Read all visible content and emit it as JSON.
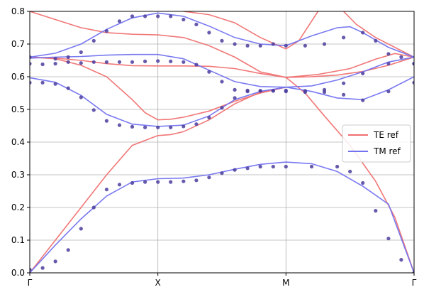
{
  "chart_data": {
    "type": "line",
    "title": "",
    "xlabel": "",
    "ylabel": "",
    "ylim": [
      0,
      0.8
    ],
    "xlim": [
      0,
      3
    ],
    "grid": true,
    "legend_position": "right",
    "x_ticks": [
      {
        "value": 0,
        "label": "Γ"
      },
      {
        "value": 1,
        "label": "X"
      },
      {
        "value": 2,
        "label": "M"
      },
      {
        "value": 3,
        "label": "Γ"
      }
    ],
    "y_ticks": [
      0.0,
      0.1,
      0.2,
      0.3,
      0.4,
      0.5,
      0.6,
      0.7,
      0.8
    ],
    "y_tick_labels": [
      "0.0",
      "0.1",
      "0.2",
      "0.3",
      "0.4",
      "0.5",
      "0.6",
      "0.7",
      "0.8"
    ],
    "series": [
      {
        "name": "TE ref",
        "color": "#f07070",
        "bands": [
          [
            [
              0,
              0
            ],
            [
              0.2,
              0.1
            ],
            [
              0.4,
              0.2
            ],
            [
              0.6,
              0.3
            ],
            [
              0.8,
              0.39
            ],
            [
              1,
              0.42
            ],
            [
              1.1,
              0.423
            ],
            [
              1.2,
              0.432
            ],
            [
              1.4,
              0.468
            ],
            [
              1.6,
              0.517
            ],
            [
              1.8,
              0.553
            ],
            [
              2,
              0.568
            ]
          ],
          [
            [
              0,
              0.66
            ],
            [
              0.2,
              0.655
            ],
            [
              0.4,
              0.635
            ],
            [
              0.6,
              0.6
            ],
            [
              0.8,
              0.53
            ],
            [
              0.9,
              0.49
            ],
            [
              1,
              0.468
            ],
            [
              1.1,
              0.47
            ],
            [
              1.2,
              0.476
            ],
            [
              1.4,
              0.495
            ],
            [
              1.6,
              0.525
            ],
            [
              1.8,
              0.55
            ],
            [
              2,
              0.568
            ]
          ],
          [
            [
              0,
              0.66
            ],
            [
              0.2,
              0.657
            ],
            [
              0.4,
              0.65
            ],
            [
              0.6,
              0.64
            ],
            [
              0.8,
              0.634
            ],
            [
              1,
              0.633
            ],
            [
              1.2,
              0.633
            ],
            [
              1.4,
              0.632
            ],
            [
              1.6,
              0.625
            ],
            [
              1.8,
              0.61
            ],
            [
              2,
              0.598
            ]
          ],
          [
            [
              0,
              0.8
            ],
            [
              0.2,
              0.775
            ],
            [
              0.4,
              0.75
            ],
            [
              0.6,
              0.735
            ],
            [
              0.8,
              0.73
            ],
            [
              1,
              0.728
            ],
            [
              1.2,
              0.72
            ],
            [
              1.4,
              0.695
            ],
            [
              1.6,
              0.66
            ],
            [
              1.8,
              0.615
            ],
            [
              2,
              0.598
            ]
          ],
          [
            [
              1.2,
              0.8
            ],
            [
              1.4,
              0.79
            ],
            [
              1.6,
              0.765
            ],
            [
              1.8,
              0.72
            ],
            [
              2,
              0.685
            ],
            [
              2.1,
              0.71
            ],
            [
              2.25,
              0.8
            ]
          ],
          [
            [
              2,
              0.598
            ],
            [
              2.15,
              0.55
            ],
            [
              2.3,
              0.48
            ],
            [
              2.5,
              0.39
            ],
            [
              2.7,
              0.28
            ],
            [
              2.85,
              0.17
            ],
            [
              3,
              0
            ]
          ],
          [
            [
              2,
              0.598
            ],
            [
              2.2,
              0.6
            ],
            [
              2.4,
              0.605
            ],
            [
              2.6,
              0.616
            ],
            [
              2.8,
              0.635
            ],
            [
              3,
              0.66
            ]
          ],
          [
            [
              2,
              0.598
            ],
            [
              2.25,
              0.607
            ],
            [
              2.5,
              0.625
            ],
            [
              2.7,
              0.654
            ],
            [
              2.85,
              0.671
            ],
            [
              3,
              0.66
            ]
          ],
          [
            [
              2.45,
              0.8
            ],
            [
              2.55,
              0.76
            ],
            [
              2.7,
              0.72
            ],
            [
              2.85,
              0.69
            ],
            [
              3,
              0.66
            ]
          ]
        ]
      },
      {
        "name": "TM ref",
        "color": "#7272f0",
        "bands": [
          [
            [
              0,
              0
            ],
            [
              0.2,
              0.085
            ],
            [
              0.4,
              0.165
            ],
            [
              0.6,
              0.235
            ],
            [
              0.8,
              0.278
            ],
            [
              1,
              0.288
            ],
            [
              1.2,
              0.29
            ],
            [
              1.4,
              0.3
            ],
            [
              1.6,
              0.317
            ],
            [
              1.8,
              0.332
            ],
            [
              2,
              0.339
            ],
            [
              2.2,
              0.334
            ],
            [
              2.4,
              0.31
            ],
            [
              2.6,
              0.265
            ],
            [
              2.8,
              0.21
            ],
            [
              3,
              0
            ]
          ],
          [
            [
              0,
              0.597
            ],
            [
              0.2,
              0.583
            ],
            [
              0.4,
              0.543
            ],
            [
              0.6,
              0.485
            ],
            [
              0.8,
              0.455
            ],
            [
              1,
              0.448
            ],
            [
              1.2,
              0.452
            ],
            [
              1.4,
              0.48
            ],
            [
              1.6,
              0.53
            ],
            [
              1.8,
              0.555
            ],
            [
              2,
              0.568
            ],
            [
              2.2,
              0.555
            ],
            [
              2.4,
              0.535
            ],
            [
              2.6,
              0.53
            ],
            [
              2.8,
              0.56
            ],
            [
              3,
              0.6
            ]
          ],
          [
            [
              0,
              0.657
            ],
            [
              0.2,
              0.66
            ],
            [
              0.4,
              0.662
            ],
            [
              0.6,
              0.666
            ],
            [
              0.8,
              0.668
            ],
            [
              1,
              0.668
            ],
            [
              1.2,
              0.655
            ],
            [
              1.4,
              0.62
            ],
            [
              1.6,
              0.585
            ],
            [
              1.8,
              0.57
            ],
            [
              2,
              0.568
            ],
            [
              2.2,
              0.572
            ],
            [
              2.4,
              0.59
            ],
            [
              2.6,
              0.615
            ],
            [
              2.8,
              0.645
            ],
            [
              3,
              0.66
            ]
          ],
          [
            [
              0,
              0.66
            ],
            [
              0.2,
              0.672
            ],
            [
              0.4,
              0.7
            ],
            [
              0.6,
              0.745
            ],
            [
              0.8,
              0.78
            ],
            [
              1,
              0.795
            ],
            [
              1.2,
              0.785
            ],
            [
              1.4,
              0.755
            ],
            [
              1.6,
              0.72
            ],
            [
              1.8,
              0.7
            ],
            [
              2,
              0.695
            ],
            [
              2.2,
              0.725
            ],
            [
              2.4,
              0.75
            ],
            [
              2.5,
              0.753
            ],
            [
              2.6,
              0.735
            ],
            [
              2.8,
              0.69
            ],
            [
              3,
              0.66
            ]
          ]
        ]
      },
      {
        "name": "",
        "color": "#4b3d9e",
        "points": [
          [
            0,
            0.01
          ],
          [
            0.1,
            0.015
          ],
          [
            0.2,
            0.035
          ],
          [
            0.3,
            0.07
          ],
          [
            0.4,
            0.135
          ],
          [
            0.5,
            0.2
          ],
          [
            0.6,
            0.255
          ],
          [
            0.7,
            0.27
          ],
          [
            0.8,
            0.275
          ],
          [
            0.9,
            0.278
          ],
          [
            1,
            0.278
          ],
          [
            1.1,
            0.278
          ],
          [
            1.2,
            0.28
          ],
          [
            1.3,
            0.283
          ],
          [
            1.4,
            0.292
          ],
          [
            1.5,
            0.305
          ],
          [
            1.6,
            0.315
          ],
          [
            1.7,
            0.32
          ],
          [
            1.8,
            0.325
          ],
          [
            1.9,
            0.325
          ],
          [
            2,
            0.325
          ],
          [
            2.2,
            0.325
          ],
          [
            2.4,
            0.325
          ],
          [
            2.5,
            0.31
          ],
          [
            2.6,
            0.275
          ],
          [
            2.7,
            0.19
          ],
          [
            2.8,
            0.105
          ],
          [
            2.9,
            0.04
          ],
          [
            3,
            0
          ],
          [
            0,
            0.582
          ],
          [
            0.1,
            0.582
          ],
          [
            0.2,
            0.578
          ],
          [
            0.3,
            0.565
          ],
          [
            0.4,
            0.537
          ],
          [
            0.5,
            0.498
          ],
          [
            0.6,
            0.465
          ],
          [
            0.7,
            0.452
          ],
          [
            0.8,
            0.447
          ],
          [
            0.9,
            0.445
          ],
          [
            1,
            0.445
          ],
          [
            1.1,
            0.445
          ],
          [
            1.2,
            0.448
          ],
          [
            1.3,
            0.455
          ],
          [
            1.4,
            0.475
          ],
          [
            1.5,
            0.505
          ],
          [
            1.6,
            0.535
          ],
          [
            1.7,
            0.555
          ],
          [
            1.8,
            0.557
          ],
          [
            1.9,
            0.557
          ],
          [
            2,
            0.558
          ],
          [
            2.15,
            0.557
          ],
          [
            2.3,
            0.553
          ],
          [
            2.45,
            0.545
          ],
          [
            2.6,
            0.528
          ],
          [
            2.8,
            0.555
          ],
          [
            3,
            0.582
          ],
          [
            0,
            0.64
          ],
          [
            0.1,
            0.638
          ],
          [
            0.2,
            0.64
          ],
          [
            0.3,
            0.645
          ],
          [
            0.4,
            0.642
          ],
          [
            0.5,
            0.645
          ],
          [
            0.6,
            0.645
          ],
          [
            0.7,
            0.645
          ],
          [
            0.8,
            0.645
          ],
          [
            0.9,
            0.647
          ],
          [
            1,
            0.648
          ],
          [
            1.1,
            0.647
          ],
          [
            1.2,
            0.645
          ],
          [
            1.3,
            0.637
          ],
          [
            1.4,
            0.615
          ],
          [
            1.5,
            0.585
          ],
          [
            1.6,
            0.56
          ],
          [
            1.7,
            0.558
          ],
          [
            1.8,
            0.557
          ],
          [
            1.9,
            0.557
          ],
          [
            2,
            0.555
          ],
          [
            2.15,
            0.553
          ],
          [
            2.3,
            0.56
          ],
          [
            2.45,
            0.58
          ],
          [
            2.6,
            0.61
          ],
          [
            2.8,
            0.64
          ],
          [
            3,
            0.64
          ],
          [
            0,
            0.66
          ],
          [
            0.2,
            0.655
          ],
          [
            0.3,
            0.66
          ],
          [
            0.4,
            0.675
          ],
          [
            0.5,
            0.71
          ],
          [
            0.6,
            0.74
          ],
          [
            0.7,
            0.77
          ],
          [
            0.8,
            0.785
          ],
          [
            0.9,
            0.785
          ],
          [
            1,
            0.785
          ],
          [
            1.1,
            0.785
          ],
          [
            1.2,
            0.775
          ],
          [
            1.3,
            0.76
          ],
          [
            1.4,
            0.735
          ],
          [
            1.5,
            0.71
          ],
          [
            1.6,
            0.7
          ],
          [
            1.7,
            0.695
          ],
          [
            1.8,
            0.695
          ],
          [
            1.9,
            0.7
          ],
          [
            2,
            0.695
          ],
          [
            2.15,
            0.695
          ],
          [
            2.3,
            0.7
          ],
          [
            2.45,
            0.72
          ],
          [
            2.6,
            0.735
          ],
          [
            2.7,
            0.71
          ],
          [
            2.8,
            0.67
          ],
          [
            2.9,
            0.66
          ],
          [
            3,
            0.64
          ]
        ]
      }
    ],
    "legend": [
      "TE ref",
      "TM ref"
    ]
  }
}
